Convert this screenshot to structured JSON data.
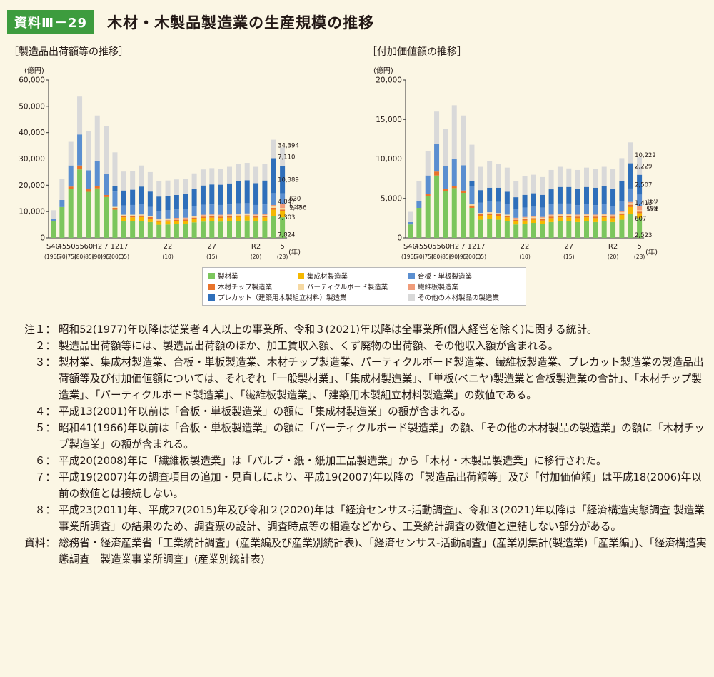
{
  "header": {
    "badge": "資料Ⅲ－29",
    "title": "木材・木製品製造業の生産規模の推移"
  },
  "year_label": "(年)",
  "left_chart": {
    "subtitle": "［製造品出荷額等の推移］",
    "unit": "(億円)"
  },
  "right_chart": {
    "subtitle": "［付加価値額の推移］",
    "unit": "(億円)"
  },
  "colors": {
    "seizai": "#7cc65d",
    "shuseizai": "#f5b800",
    "chip": "#e8732b",
    "particle": "#f6d9a2",
    "gohan": "#5b8fd0",
    "seni": "#f09c7a",
    "precut": "#2f6fba",
    "other": "#d9d9d9"
  },
  "legend": [
    {
      "key": "seizai",
      "label": "製材業"
    },
    {
      "key": "shuseizai",
      "label": "集成材製造業"
    },
    {
      "key": "gohan",
      "label": "合板・単板製造業"
    },
    {
      "key": "chip",
      "label": "木材チップ製造業"
    },
    {
      "key": "particle",
      "label": "パーティクルボード製造業"
    },
    {
      "key": "seni",
      "label": "繊維板製造業"
    },
    {
      "key": "precut",
      "label": "プレカット（建築用木製組立材料）製造業"
    },
    {
      "key": "other",
      "label": "その他の木材製品の製造業"
    }
  ],
  "chart_data": [
    {
      "type": "bar",
      "stacked": true,
      "title": "［製造品出荷額等の推移］",
      "ylabel": "(億円)",
      "ylim": [
        0,
        60000
      ],
      "yticks": [
        "0",
        "10,000",
        "20,000",
        "30,000",
        "40,000",
        "50,000",
        "60,000"
      ],
      "grid": false,
      "x_labels": [
        {
          "i": 0,
          "top": "S40",
          "bottom": "(1965)"
        },
        {
          "i": 1,
          "top": "45",
          "bottom": "(70)"
        },
        {
          "i": 2,
          "top": "50",
          "bottom": "(75)"
        },
        {
          "i": 3,
          "top": "55",
          "bottom": "(80)"
        },
        {
          "i": 4,
          "top": "60",
          "bottom": "(85)"
        },
        {
          "i": 5,
          "top": "H2",
          "bottom": "(90)"
        },
        {
          "i": 6,
          "top": "7",
          "bottom": "(95)"
        },
        {
          "i": 7,
          "top": "12",
          "bottom": "(2000)"
        },
        {
          "i": 8,
          "top": "17",
          "bottom": "(05)"
        },
        {
          "i": 13,
          "top": "22",
          "bottom": "(10)"
        },
        {
          "i": 18,
          "top": "27",
          "bottom": "(15)"
        },
        {
          "i": 23,
          "top": "R2",
          "bottom": "(20)"
        },
        {
          "i": 26,
          "top": "5",
          "bottom": "(23)"
        }
      ],
      "bar_totals": [
        10500,
        22500,
        36500,
        53700,
        40500,
        46500,
        42500,
        32500,
        25200,
        25500,
        27500,
        25000,
        21500,
        21800,
        22200,
        22500,
        24500,
        26000,
        26500,
        26300,
        27000,
        28000,
        28500,
        27000,
        28000,
        37300,
        34394
      ],
      "bars": [
        {
          "seizai": 6500,
          "gohan": 700,
          "other": 3300
        },
        {
          "seizai": 11700,
          "gohan": 2700,
          "other": 8100
        },
        {
          "seizai": 18500,
          "chip": 1000,
          "gohan": 8000,
          "precut": 0,
          "other": 9000
        },
        {
          "seizai": 26000,
          "chip": 1500,
          "gohan": 11800,
          "precut": 0,
          "other": 14400
        },
        {
          "seizai": 17500,
          "chip": 1000,
          "gohan": 7200,
          "precut": 0,
          "other": 14800
        },
        {
          "seizai": 18800,
          "chip": 1000,
          "gohan": 9500,
          "precut": 0,
          "other": 17200
        },
        {
          "seizai": 15500,
          "chip": 800,
          "gohan": 8000,
          "precut": 0,
          "other": 18200
        },
        {
          "seizai": 10700,
          "chip": 700,
          "particle": 400,
          "gohan": 5800,
          "precut": 2000,
          "other": 12900
        },
        {
          "seizai": 6500,
          "shuseizai": 1300,
          "chip": 600,
          "particle": 400,
          "gohan": 3500,
          "precut": 5700,
          "other": 7200
        },
        {
          "seizai": 6500,
          "shuseizai": 1300,
          "chip": 600,
          "particle": 400,
          "gohan": 3700,
          "precut": 5800,
          "other": 7200
        },
        {
          "seizai": 6500,
          "shuseizai": 1400,
          "chip": 600,
          "particle": 400,
          "gohan": 4000,
          "precut": 6600,
          "other": 8000
        },
        {
          "seizai": 6000,
          "shuseizai": 1300,
          "chip": 600,
          "particle": 400,
          "gohan": 3500,
          "precut": 5800,
          "other": 7400
        },
        {
          "seizai": 5000,
          "shuseizai": 1100,
          "chip": 500,
          "particle": 400,
          "seni": 300,
          "gohan": 3000,
          "precut": 5400,
          "other": 5800
        },
        {
          "seizai": 5100,
          "shuseizai": 1100,
          "chip": 500,
          "particle": 400,
          "seni": 300,
          "gohan": 3100,
          "precut": 5400,
          "other": 5900
        },
        {
          "seizai": 5200,
          "shuseizai": 1200,
          "chip": 500,
          "particle": 400,
          "seni": 300,
          "gohan": 3200,
          "precut": 5500,
          "other": 5900
        },
        {
          "seizai": 5300,
          "shuseizai": 1200,
          "chip": 500,
          "particle": 400,
          "seni": 300,
          "gohan": 3300,
          "precut": 5600,
          "other": 5900
        },
        {
          "seizai": 5900,
          "shuseizai": 1300,
          "chip": 500,
          "particle": 400,
          "seni": 300,
          "gohan": 3600,
          "precut": 6500,
          "other": 6000
        },
        {
          "seizai": 6200,
          "shuseizai": 1400,
          "chip": 500,
          "particle": 400,
          "seni": 300,
          "gohan": 3800,
          "precut": 7300,
          "other": 6100
        },
        {
          "seizai": 6300,
          "shuseizai": 1400,
          "chip": 500,
          "particle": 400,
          "seni": 300,
          "gohan": 3800,
          "precut": 7600,
          "other": 6200
        },
        {
          "seizai": 6200,
          "shuseizai": 1400,
          "chip": 500,
          "particle": 400,
          "seni": 300,
          "gohan": 3700,
          "precut": 7700,
          "other": 6100
        },
        {
          "seizai": 6300,
          "shuseizai": 1400,
          "chip": 500,
          "particle": 400,
          "seni": 300,
          "gohan": 3800,
          "precut": 8000,
          "other": 6300
        },
        {
          "seizai": 6500,
          "shuseizai": 1500,
          "chip": 500,
          "particle": 400,
          "seni": 300,
          "gohan": 3900,
          "precut": 8400,
          "other": 6500
        },
        {
          "seizai": 6600,
          "shuseizai": 1500,
          "chip": 500,
          "particle": 400,
          "seni": 300,
          "gohan": 3900,
          "precut": 8700,
          "other": 6600
        },
        {
          "seizai": 6300,
          "shuseizai": 1400,
          "chip": 500,
          "particle": 400,
          "seni": 300,
          "gohan": 3600,
          "precut": 8300,
          "other": 6200
        },
        {
          "seizai": 6300,
          "shuseizai": 1500,
          "chip": 500,
          "particle": 400,
          "seni": 300,
          "gohan": 3700,
          "precut": 9100,
          "other": 6200
        },
        {
          "seizai": 8300,
          "shuseizai": 2400,
          "chip": 700,
          "particle": 700,
          "seni": 400,
          "gohan": 4500,
          "precut": 13300,
          "other": 7000
        },
        {
          "seizai": 7824,
          "shuseizai": 2303,
          "chip": 636,
          "particle": 630,
          "seni": 1456,
          "gohan": 4047,
          "precut": 10389,
          "other": 7110
        }
      ],
      "last_bar_labels": [
        {
          "key": "total",
          "label": "34,394"
        },
        {
          "key": "other",
          "label": "7,110"
        },
        {
          "key": "precut",
          "label": "10,389"
        },
        {
          "key": "particle",
          "label": "630"
        },
        {
          "key": "chip",
          "label": "636"
        },
        {
          "key": "seni",
          "label": "1,456"
        },
        {
          "key": "gohan",
          "label": "4,047"
        },
        {
          "key": "shuseizai",
          "label": "2,303"
        },
        {
          "key": "seizai",
          "label": "7,824"
        }
      ]
    },
    {
      "type": "bar",
      "stacked": true,
      "title": "［付加価値額の推移］",
      "ylabel": "(億円)",
      "ylim": [
        0,
        20000
      ],
      "yticks": [
        "0",
        "5,000",
        "10,000",
        "15,000",
        "20,000"
      ],
      "grid": false,
      "x_labels": [
        {
          "i": 0,
          "top": "S40",
          "bottom": "(1965)"
        },
        {
          "i": 1,
          "top": "45",
          "bottom": "(70)"
        },
        {
          "i": 2,
          "top": "50",
          "bottom": "(75)"
        },
        {
          "i": 3,
          "top": "55",
          "bottom": "(80)"
        },
        {
          "i": 4,
          "top": "60",
          "bottom": "(85)"
        },
        {
          "i": 5,
          "top": "H2",
          "bottom": "(90)"
        },
        {
          "i": 6,
          "top": "7",
          "bottom": "(95)"
        },
        {
          "i": 7,
          "top": "12",
          "bottom": "(2000)"
        },
        {
          "i": 8,
          "top": "17",
          "bottom": "(05)"
        },
        {
          "i": 13,
          "top": "22",
          "bottom": "(10)"
        },
        {
          "i": 18,
          "top": "27",
          "bottom": "(15)"
        },
        {
          "i": 23,
          "top": "R2",
          "bottom": "(20)"
        },
        {
          "i": 26,
          "top": "5",
          "bottom": "(23)"
        }
      ],
      "bar_totals": [
        3300,
        7200,
        11000,
        16000,
        13800,
        16800,
        15500,
        11800,
        9000,
        9700,
        9400,
        8900,
        7200,
        7800,
        8000,
        7700,
        8600,
        9000,
        8800,
        8600,
        8900,
        8700,
        9000,
        8700,
        10100,
        12100,
        10222
      ],
      "bars": [
        {
          "seizai": 1700,
          "gohan": 300,
          "other": 1300
        },
        {
          "seizai": 3800,
          "gohan": 900,
          "other": 2500
        },
        {
          "seizai": 5300,
          "chip": 300,
          "gohan": 2300,
          "other": 3100
        },
        {
          "seizai": 7900,
          "chip": 500,
          "gohan": 3500,
          "other": 4100
        },
        {
          "seizai": 5900,
          "chip": 300,
          "gohan": 2900,
          "other": 4700
        },
        {
          "seizai": 6300,
          "chip": 300,
          "gohan": 3400,
          "other": 6800
        },
        {
          "seizai": 5700,
          "chip": 300,
          "gohan": 3200,
          "other": 6300
        },
        {
          "seizai": 3800,
          "chip": 300,
          "particle": 150,
          "gohan": 2300,
          "precut": 700,
          "other": 4550
        },
        {
          "seizai": 2300,
          "shuseizai": 500,
          "chip": 200,
          "particle": 150,
          "gohan": 1300,
          "precut": 1600,
          "other": 2950
        },
        {
          "seizai": 2400,
          "shuseizai": 500,
          "chip": 200,
          "particle": 150,
          "gohan": 1400,
          "precut": 1700,
          "other": 3350
        },
        {
          "seizai": 2300,
          "shuseizai": 500,
          "chip": 200,
          "particle": 150,
          "gohan": 1400,
          "precut": 1800,
          "other": 3050
        },
        {
          "seizai": 2100,
          "shuseizai": 500,
          "chip": 200,
          "particle": 150,
          "gohan": 1300,
          "precut": 1600,
          "other": 3050
        },
        {
          "seizai": 1700,
          "shuseizai": 400,
          "chip": 200,
          "particle": 150,
          "seni": 100,
          "gohan": 1100,
          "precut": 1500,
          "other": 2050
        },
        {
          "seizai": 1800,
          "shuseizai": 400,
          "chip": 200,
          "particle": 150,
          "seni": 100,
          "gohan": 1200,
          "precut": 1600,
          "other": 2350
        },
        {
          "seizai": 1900,
          "shuseizai": 400,
          "chip": 200,
          "particle": 150,
          "seni": 100,
          "gohan": 1200,
          "precut": 1700,
          "other": 2350
        },
        {
          "seizai": 1800,
          "shuseizai": 400,
          "chip": 200,
          "particle": 150,
          "seni": 100,
          "gohan": 1200,
          "precut": 1600,
          "other": 2250
        },
        {
          "seizai": 2000,
          "shuseizai": 500,
          "chip": 200,
          "particle": 150,
          "seni": 100,
          "gohan": 1300,
          "precut": 1900,
          "other": 2450
        },
        {
          "seizai": 2100,
          "shuseizai": 500,
          "chip": 200,
          "particle": 150,
          "seni": 100,
          "gohan": 1300,
          "precut": 2100,
          "other": 2550
        },
        {
          "seizai": 2100,
          "shuseizai": 500,
          "chip": 200,
          "particle": 150,
          "seni": 100,
          "gohan": 1300,
          "precut": 2100,
          "other": 2350
        },
        {
          "seizai": 2000,
          "shuseizai": 500,
          "chip": 200,
          "particle": 150,
          "seni": 100,
          "gohan": 1200,
          "precut": 2100,
          "other": 2350
        },
        {
          "seizai": 2100,
          "shuseizai": 500,
          "chip": 200,
          "particle": 150,
          "seni": 100,
          "gohan": 1200,
          "precut": 2200,
          "other": 2450
        },
        {
          "seizai": 2000,
          "shuseizai": 500,
          "chip": 200,
          "particle": 150,
          "seni": 100,
          "gohan": 1200,
          "precut": 2200,
          "other": 2350
        },
        {
          "seizai": 2100,
          "shuseizai": 500,
          "chip": 200,
          "particle": 150,
          "seni": 100,
          "gohan": 1200,
          "precut": 2300,
          "other": 2450
        },
        {
          "seizai": 2000,
          "shuseizai": 500,
          "chip": 200,
          "particle": 150,
          "seni": 100,
          "gohan": 1100,
          "precut": 2200,
          "other": 2450
        },
        {
          "seizai": 2300,
          "shuseizai": 600,
          "chip": 200,
          "particle": 150,
          "seni": 100,
          "gohan": 1300,
          "precut": 2600,
          "other": 2850
        },
        {
          "seizai": 3000,
          "shuseizai": 900,
          "chip": 300,
          "particle": 200,
          "seni": 150,
          "gohan": 1700,
          "precut": 3200,
          "other": 2650
        },
        {
          "seizai": 2523,
          "shuseizai": 607,
          "chip": 199,
          "particle": 169,
          "seni": 574,
          "gohan": 1413,
          "precut": 2507,
          "other": 2229
        }
      ],
      "last_bar_labels": [
        {
          "key": "total",
          "label": "10,222"
        },
        {
          "key": "other",
          "label": "2,229"
        },
        {
          "key": "precut",
          "label": "2,507"
        },
        {
          "key": "particle",
          "label": "169"
        },
        {
          "key": "chip",
          "label": "199"
        },
        {
          "key": "seni",
          "label": "574"
        },
        {
          "key": "gohan",
          "label": "1,413"
        },
        {
          "key": "shuseizai",
          "label": "607"
        },
        {
          "key": "seizai",
          "label": "2,523"
        }
      ]
    }
  ],
  "notes": [
    {
      "label": "注１：",
      "text": "昭和52(1977)年以降は従業者４人以上の事業所、令和３(2021)年以降は全事業所(個人経営を除く)に関する統計。"
    },
    {
      "label": "２：",
      "text": "製造品出荷額等には、製造品出荷額のほか、加工賃収入額、くず廃物の出荷額、その他収入額が含まれる。"
    },
    {
      "label": "３：",
      "text": "製材業、集成材製造業、合板・単板製造業、木材チップ製造業、パーティクルボード製造業、繊維板製造業、プレカット製造業の製造品出荷額等及び付加価値額については、それぞれ「一般製材業」、「集成材製造業」、「単板(ベニヤ)製造業と合板製造業の合計」、「木材チップ製造業」、「パーティクルボード製造業」、「繊維板製造業」、「建築用木製組立材料製造業」の数値である。"
    },
    {
      "label": "４：",
      "text": "平成13(2001)年以前は「合板・単板製造業」の額に「集成材製造業」の額が含まれる。"
    },
    {
      "label": "５：",
      "text": "昭和41(1966)年以前は「合板・単板製造業」の額に「パーティクルボード製造業」の額、「その他の木材製品の製造業」の額に「木材チップ製造業」の額が含まれる。"
    },
    {
      "label": "６：",
      "text": "平成20(2008)年に「繊維板製造業」は「パルプ・紙・紙加工品製造業」から「木材・木製品製造業」に移行された。"
    },
    {
      "label": "７：",
      "text": "平成19(2007)年の調査項目の追加・見直しにより、平成19(2007)年以降の「製造品出荷額等」及び「付加価値額」は平成18(2006)年以前の数値とは接続しない。"
    },
    {
      "label": "８：",
      "text": "平成23(2011)年、平成27(2015)年及び令和２(2020)年は「経済センサス-活動調査」、令和３(2021)年以降は「経済構造実態調査 製造業事業所調査」の結果のため、調査票の設計、調査時点等の相違などから、工業統計調査の数値と連結しない部分がある。"
    },
    {
      "label": "資料：",
      "text": "総務省・経済産業省「工業統計調査」(産業編及び産業別統計表)、「経済センサス-活動調査」(産業別集計(製造業)「産業編」)、「経済構造実態調査　製造業事業所調査」(産業別統計表)"
    }
  ]
}
